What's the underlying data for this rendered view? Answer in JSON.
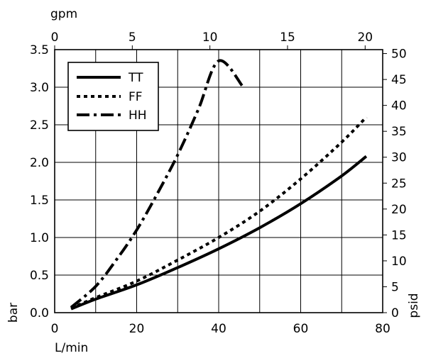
{
  "chart_data": {
    "type": "line",
    "grid": true,
    "legend_position": "top-left",
    "x_axis_bottom": {
      "label": "L/min",
      "range": [
        0,
        80
      ],
      "ticks": [
        "0",
        "20",
        "40",
        "60",
        "80"
      ],
      "tick_values": [
        0,
        20,
        40,
        60,
        80
      ]
    },
    "x_axis_top": {
      "label": "gpm",
      "range": [
        0,
        21.13
      ],
      "ticks": [
        "0",
        "5",
        "10",
        "15",
        "20"
      ],
      "tick_values": [
        0,
        5,
        10,
        15,
        20
      ]
    },
    "y_axis_left": {
      "label": "bar",
      "range": [
        0,
        3.5
      ],
      "ticks": [
        "0.0",
        "0.5",
        "1.0",
        "1.5",
        "2.0",
        "2.5",
        "3.0",
        "3.5"
      ],
      "tick_values": [
        0,
        0.5,
        1.0,
        1.5,
        2.0,
        2.5,
        3.0,
        3.5
      ]
    },
    "y_axis_right": {
      "label": "psid",
      "range": [
        0,
        50.76
      ],
      "ticks": [
        "0",
        "5",
        "10",
        "15",
        "20",
        "25",
        "30",
        "35",
        "40",
        "45",
        "50"
      ],
      "tick_values": [
        0,
        5,
        10,
        15,
        20,
        25,
        30,
        35,
        40,
        45,
        50
      ]
    },
    "series": [
      {
        "name": "TT",
        "style": "solid",
        "x": [
          4,
          10,
          20,
          30,
          40,
          50,
          60,
          70,
          76
        ],
        "y": [
          0.05,
          0.18,
          0.37,
          0.6,
          0.85,
          1.13,
          1.45,
          1.82,
          2.08
        ]
      },
      {
        "name": "FF",
        "style": "dotted",
        "x": [
          4,
          10,
          20,
          30,
          40,
          50,
          60,
          70,
          76
        ],
        "y": [
          0.06,
          0.2,
          0.42,
          0.7,
          1.0,
          1.35,
          1.78,
          2.27,
          2.6
        ]
      },
      {
        "name": "HH",
        "style": "dashdot",
        "x": [
          4,
          10,
          15,
          20,
          25,
          30,
          35,
          40,
          46
        ],
        "y": [
          0.07,
          0.35,
          0.7,
          1.1,
          1.58,
          2.1,
          2.7,
          3.35,
          3.0
        ]
      }
    ]
  }
}
